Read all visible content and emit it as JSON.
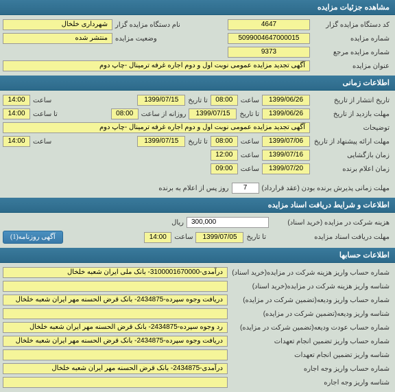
{
  "sections": {
    "details": {
      "title": "مشاهده جزئیات مزایده",
      "fields": {
        "code_label": "کد دستگاه مزایده گزار",
        "code_value": "4647",
        "name_label": "نام دستگاه مزایده گزار",
        "name_value": "شهرداری خلخال",
        "auction_num_label": "شماره مزایده",
        "auction_num_value": "5099004647000015",
        "status_label": "وضعیت مزایده",
        "status_value": "منتشر شده",
        "ref_num_label": "شماره مزایده مرجع",
        "ref_num_value": "9373",
        "subject_label": "عنوان مزایده",
        "subject_value": "آگهی تجدید مزایده عمومی نوبت اول و دوم اجاره غرفه ترمینال -چاپ دوم"
      }
    },
    "time": {
      "title": "اطلاعات زمانی",
      "rows": {
        "publish": {
          "label": "تاریخ انتشار  از تاریخ",
          "from_date": "1399/06/26",
          "time_label": "ساعت",
          "from_time": "08:00",
          "to_label": "تا تاریخ",
          "to_date": "1399/07/15",
          "to_time_label": "ساعت",
          "to_time": "14:00"
        },
        "visit": {
          "label": "مهلت بازدید   از تاریخ",
          "from_date": "1399/06/26",
          "to_label": "تا تاریخ",
          "to_date": "1399/07/15",
          "note_label": "روزانه از ساعت",
          "note_from": "08:00",
          "note_to_label": "تا ساعت",
          "note_to": "14:00"
        },
        "desc": {
          "label": "توضیحات",
          "value": "آگهی تجدید مزایده عمومی نوبت اول و دوم اجاره غرفه ترمینال -چاپ دوم"
        },
        "proposal": {
          "label": "مهلت ارائه پیشنهاد  از تاریخ",
          "from_date": "1399/07/06",
          "time_label": "ساعت",
          "from_time": "08:00",
          "to_label": "تا تاریخ",
          "to_date": "1399/07/15",
          "to_time_label": "ساعت",
          "to_time": "14:00"
        },
        "opening": {
          "label": "زمان بازگشایی",
          "date": "1399/07/16",
          "time_label": "ساعت",
          "time": "12:00"
        },
        "winner": {
          "label": "زمان اعلام برنده",
          "date": "1399/07/20",
          "time_label": "ساعت",
          "time": "09:00"
        },
        "accept": {
          "label": "مهلت زمانی پذیرش برنده بودن (عقد قرارداد)",
          "value": "7",
          "suffix": "روز پس از اعلام به برنده"
        }
      }
    },
    "docs": {
      "title": "اطلاعات و شرایط دریافت اسناد مزایده",
      "cost_label": "هزینه شرکت در مزایده (خرید اسناد)",
      "cost_value": "300,000",
      "cost_unit": "ریال",
      "deadline_label": "مهلت دریافت اسناد مزایده",
      "deadline_to": "تا تاریخ",
      "deadline_date": "1399/07/05",
      "deadline_time_label": "ساعت",
      "deadline_time": "14:00",
      "btn_label": "آگهی روزنامه(1)"
    },
    "accounts": {
      "title": "اطلاعات حسابها",
      "rows": [
        {
          "label": "شماره حساب واریز هزینه شرکت در مزایده(خرید اسناد)",
          "value": "درآمدی-3100001670000- بانک ملی ایران شعبه خلخال"
        },
        {
          "label": "شناسه واریز هزینه شرکت در مزایده(خرید اسناد)",
          "value": ""
        },
        {
          "label": "شماره حساب واریز ودیعه(تضمین شرکت در مزایده)",
          "value": "دریافت وجوه سپرده-2434875- بانک قرض الحسنه مهر ایران شعبه خلخال"
        },
        {
          "label": "شناسه واریز ودیعه(تضمین شرکت در مزایده)",
          "value": ""
        },
        {
          "label": "شماره حساب عودت ودیعه(تضمین شرکت در مزایده)",
          "value": "رد وجوه سپرده-2434875- بانک قرض الحسنه مهر ایران شعبه خلخال"
        },
        {
          "label": "شماره حساب واریز تضمین انجام تعهدات",
          "value": "دریافت وجوه سپرده-2434875- بانک قرض الحسنه مهر ایران شعبه خلخال"
        },
        {
          "label": "شناسه واریز تضمین انجام تعهدات",
          "value": ""
        },
        {
          "label": "شماره حساب واریز وجه اجاره",
          "value": "درآمدی-2434875- بانک قرض الحسنه مهر ایران شعبه خلخال"
        },
        {
          "label": "شناسه واریز وجه اجاره",
          "value": ""
        }
      ]
    }
  }
}
